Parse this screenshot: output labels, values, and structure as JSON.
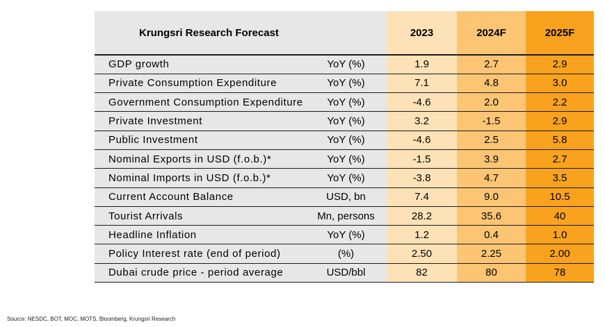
{
  "table": {
    "title": "Krungsri Research Forecast",
    "years": [
      "2023",
      "2024F",
      "2025F"
    ],
    "colors": {
      "label_bg": "#e7e7e7",
      "y2023": "#fde2b7",
      "y2024F": "#fbc574",
      "y2025F": "#f9a21e"
    },
    "rows": [
      {
        "label": "GDP growth",
        "unit": "YoY (%)",
        "values": [
          "1.9",
          "2.7",
          "2.9"
        ]
      },
      {
        "label": "Private Consumption Expenditure",
        "unit": "YoY (%)",
        "values": [
          "7.1",
          "4.8",
          "3.0"
        ]
      },
      {
        "label": "Government Consumption Expenditure",
        "unit": "YoY (%)",
        "values": [
          "-4.6",
          "2.0",
          "2.2"
        ]
      },
      {
        "label": "Private Investment",
        "unit": "YoY (%)",
        "values": [
          "3.2",
          "-1.5",
          "2.9"
        ]
      },
      {
        "label": "Public Investment",
        "unit": "YoY (%)",
        "values": [
          "-4.6",
          "2.5",
          "5.8"
        ]
      },
      {
        "label": "Nominal Exports in USD (f.o.b.)*",
        "unit": "YoY (%)",
        "values": [
          "-1.5",
          "3.9",
          "2.7"
        ]
      },
      {
        "label": "Nominal Imports in USD (f.o.b.)*",
        "unit": "YoY (%)",
        "values": [
          "-3.8",
          "4.7",
          "3.5"
        ]
      },
      {
        "label": "Current Account Balance",
        "unit": "USD, bn",
        "values": [
          "7.4",
          "9.0",
          "10.5"
        ]
      },
      {
        "label": "Tourist Arrivals",
        "unit": "Mn, persons",
        "values": [
          "28.2",
          "35.6",
          "40"
        ]
      },
      {
        "label": "Headline Inflation",
        "unit": "YoY (%)",
        "values": [
          "1.2",
          "0.4",
          "1.0"
        ]
      },
      {
        "label": "Policy Interest rate (end of period)",
        "unit": "(%)",
        "values": [
          "2.50",
          "2.25",
          "2.00"
        ]
      },
      {
        "label": "Dubai crude price - period average",
        "unit": "USD/bbl",
        "values": [
          "82",
          "80",
          "78"
        ]
      }
    ]
  },
  "source": "Source: NESDC, BOT, MOC, MOTS, Bloomberg, Krungsri Research"
}
